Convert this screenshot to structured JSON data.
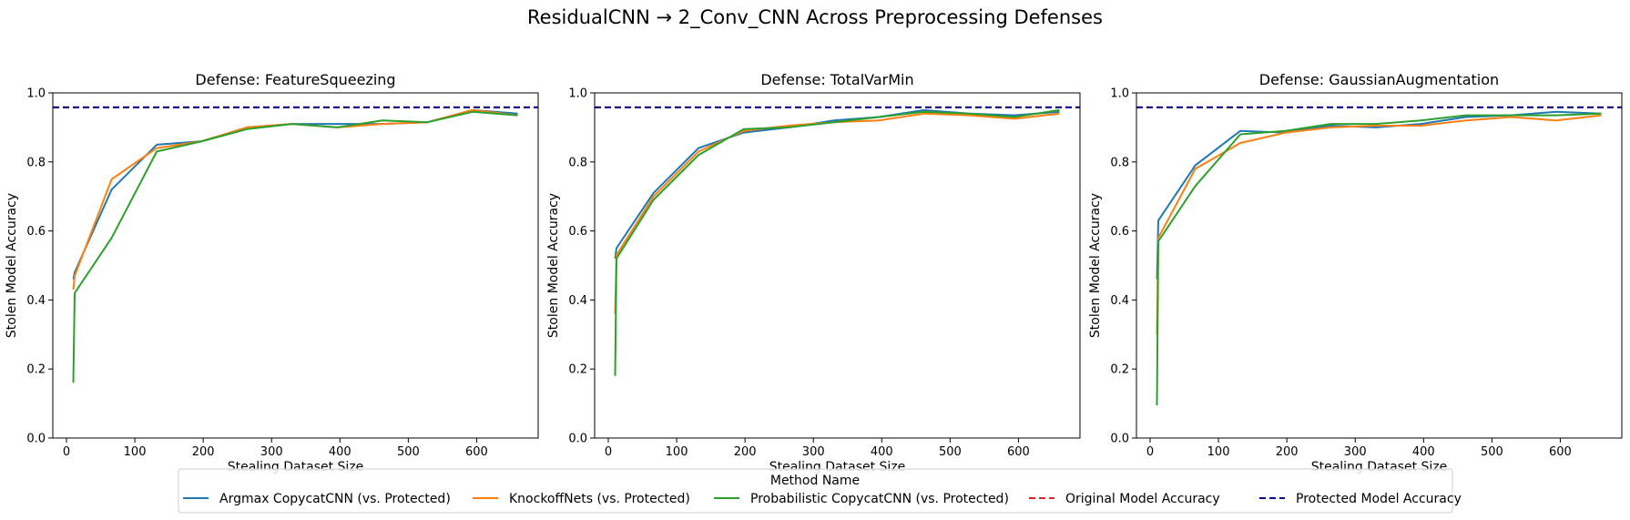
{
  "suptitle": "ResidualCNN → 2_Conv_CNN Across Preprocessing Defenses",
  "legend": {
    "title": "Method Name",
    "entries": [
      {
        "label": "Argmax CopycatCNN (vs. Protected)",
        "color": "#1f77b4",
        "dash": "solid"
      },
      {
        "label": "KnockoffNets (vs. Protected)",
        "color": "#ff7f0e",
        "dash": "solid"
      },
      {
        "label": "Probabilistic CopycatCNN (vs. Protected)",
        "color": "#2ca02c",
        "dash": "solid"
      },
      {
        "label": "Original Model Accuracy",
        "color": "#d62728",
        "dash": "dashed"
      },
      {
        "label": "Protected Model Accuracy",
        "color": "#00008b",
        "dash": "dashed"
      }
    ]
  },
  "chart_data": [
    {
      "type": "line",
      "title": "Defense: FeatureSqueezing",
      "xlabel": "Stealing Dataset Size",
      "ylabel": "Stolen Model Accuracy",
      "xlim": [
        -20,
        690
      ],
      "ylim": [
        0,
        1.0
      ],
      "xticks": [
        0,
        100,
        200,
        300,
        400,
        500,
        600
      ],
      "yticks": [
        0.0,
        0.2,
        0.4,
        0.6,
        0.8,
        1.0
      ],
      "x": [
        10,
        12,
        66,
        132,
        198,
        264,
        330,
        396,
        462,
        528,
        594,
        660
      ],
      "series": [
        {
          "name": "Argmax CopycatCNN (vs. Protected)",
          "color": "#1f77b4",
          "values": [
            0.46,
            0.48,
            0.72,
            0.85,
            0.86,
            0.9,
            0.91,
            0.91,
            0.91,
            0.915,
            0.95,
            0.94
          ]
        },
        {
          "name": "KnockoffNets (vs. Protected)",
          "color": "#ff7f0e",
          "values": [
            0.43,
            0.47,
            0.75,
            0.84,
            0.86,
            0.9,
            0.91,
            0.9,
            0.91,
            0.915,
            0.95,
            0.935
          ]
        },
        {
          "name": "Probabilistic CopycatCNN (vs. Protected)",
          "color": "#2ca02c",
          "values": [
            0.16,
            0.42,
            0.58,
            0.83,
            0.86,
            0.895,
            0.91,
            0.9,
            0.92,
            0.915,
            0.945,
            0.935
          ]
        }
      ],
      "hlines": [
        {
          "name": "Original Model Accuracy",
          "color": "#d62728",
          "y": 0.958
        },
        {
          "name": "Protected Model Accuracy",
          "color": "#00008b",
          "y": 0.958
        }
      ]
    },
    {
      "type": "line",
      "title": "Defense: TotalVarMin",
      "xlabel": "Stealing Dataset Size",
      "ylabel": "Stolen Model Accuracy",
      "xlim": [
        -20,
        690
      ],
      "ylim": [
        0,
        1.0
      ],
      "xticks": [
        0,
        100,
        200,
        300,
        400,
        500,
        600
      ],
      "yticks": [
        0.0,
        0.2,
        0.4,
        0.6,
        0.8,
        1.0
      ],
      "x": [
        10,
        12,
        66,
        132,
        198,
        264,
        330,
        396,
        462,
        528,
        594,
        660
      ],
      "series": [
        {
          "name": "Argmax CopycatCNN (vs. Protected)",
          "color": "#1f77b4",
          "values": [
            0.52,
            0.55,
            0.71,
            0.84,
            0.885,
            0.9,
            0.92,
            0.93,
            0.95,
            0.94,
            0.935,
            0.945
          ]
        },
        {
          "name": "KnockoffNets (vs. Protected)",
          "color": "#ff7f0e",
          "values": [
            0.36,
            0.53,
            0.7,
            0.83,
            0.89,
            0.905,
            0.915,
            0.92,
            0.94,
            0.935,
            0.925,
            0.94
          ]
        },
        {
          "name": "Probabilistic CopycatCNN (vs. Protected)",
          "color": "#2ca02c",
          "values": [
            0.18,
            0.52,
            0.69,
            0.82,
            0.895,
            0.9,
            0.915,
            0.93,
            0.945,
            0.94,
            0.93,
            0.95
          ]
        }
      ],
      "hlines": [
        {
          "name": "Original Model Accuracy",
          "color": "#d62728",
          "y": 0.958
        },
        {
          "name": "Protected Model Accuracy",
          "color": "#00008b",
          "y": 0.958
        }
      ]
    },
    {
      "type": "line",
      "title": "Defense: GaussianAugmentation",
      "xlabel": "Stealing Dataset Size",
      "ylabel": "Stolen Model Accuracy",
      "xlim": [
        -20,
        690
      ],
      "ylim": [
        0,
        1.0
      ],
      "xticks": [
        0,
        100,
        200,
        300,
        400,
        500,
        600
      ],
      "yticks": [
        0.0,
        0.2,
        0.4,
        0.6,
        0.8,
        1.0
      ],
      "x": [
        10,
        12,
        66,
        132,
        198,
        264,
        330,
        396,
        462,
        528,
        594,
        660
      ],
      "series": [
        {
          "name": "Argmax CopycatCNN (vs. Protected)",
          "color": "#1f77b4",
          "values": [
            0.46,
            0.63,
            0.79,
            0.89,
            0.885,
            0.905,
            0.9,
            0.91,
            0.93,
            0.935,
            0.945,
            0.94
          ]
        },
        {
          "name": "KnockoffNets (vs. Protected)",
          "color": "#ff7f0e",
          "values": [
            0.3,
            0.58,
            0.78,
            0.855,
            0.885,
            0.9,
            0.905,
            0.905,
            0.92,
            0.93,
            0.92,
            0.935
          ]
        },
        {
          "name": "Probabilistic CopycatCNN (vs. Protected)",
          "color": "#2ca02c",
          "values": [
            0.095,
            0.57,
            0.73,
            0.88,
            0.89,
            0.91,
            0.91,
            0.92,
            0.935,
            0.935,
            0.935,
            0.94
          ]
        }
      ],
      "hlines": [
        {
          "name": "Original Model Accuracy",
          "color": "#d62728",
          "y": 0.958
        },
        {
          "name": "Protected Model Accuracy",
          "color": "#00008b",
          "y": 0.958
        }
      ]
    }
  ]
}
